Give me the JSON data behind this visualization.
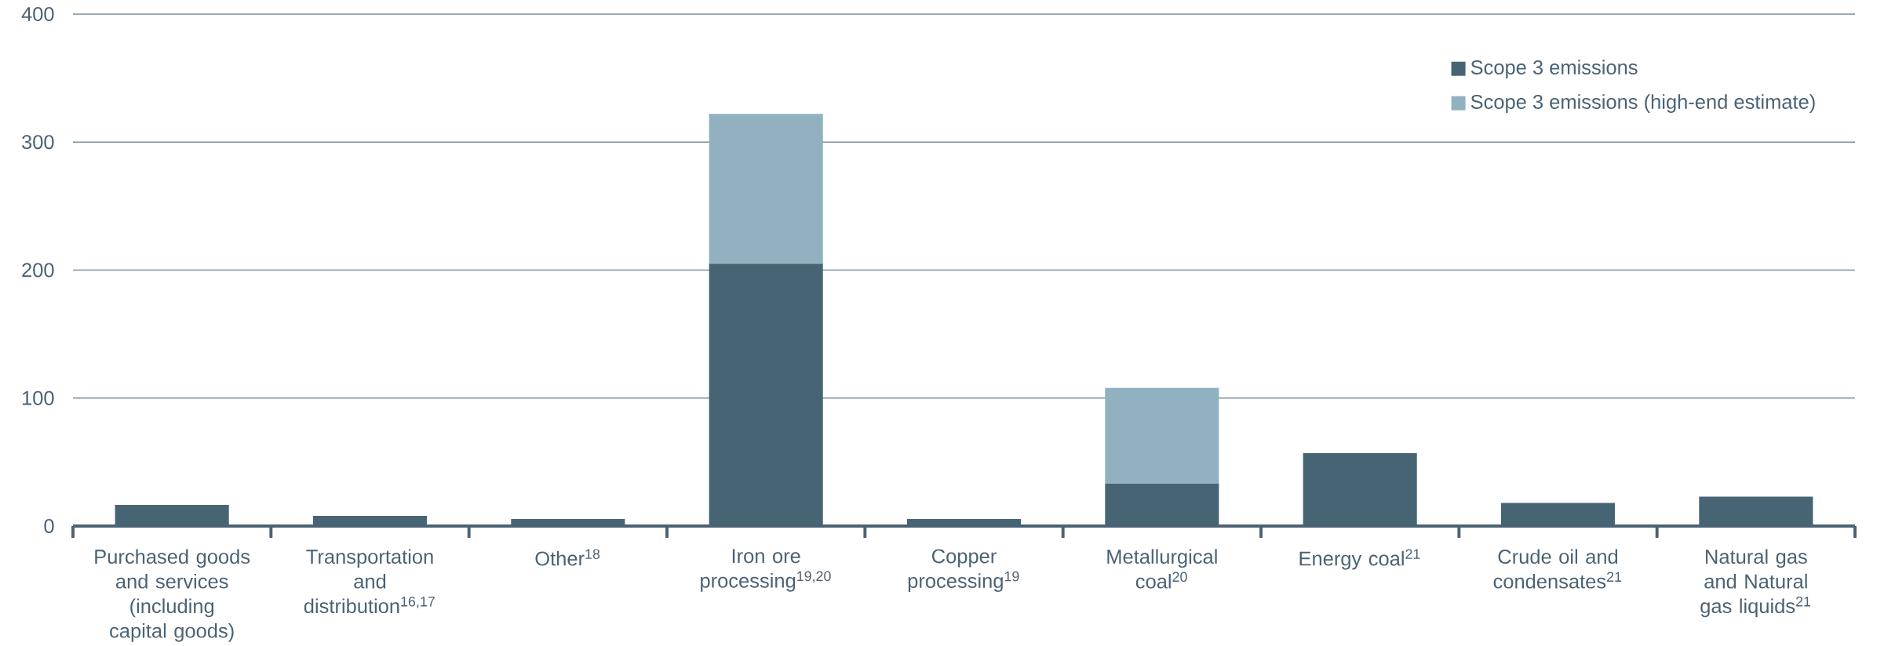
{
  "chart_data": {
    "type": "bar",
    "stacked": true,
    "categories": [
      "Purchased goods and services (including capital goods)",
      "Transportation and distribution$^{16,17}$",
      "Other$^{18}$",
      "Iron ore processing$^{19,20}$",
      "Copper processing$^{19}$",
      "Metallurgical coal$^{20}$",
      "Energy coal$^{21}$",
      "Crude oil and condensates$^{21}$",
      "Natural gas and Natural gas liquids$^{21}$"
    ],
    "series": [
      {
        "name": "Scope 3 emissions",
        "color": "#476474",
        "values": [
          16.5,
          8,
          5.5,
          205,
          5.5,
          33,
          57,
          18,
          23
        ]
      },
      {
        "name": "Scope 3 emissions (high-end estimate)",
        "color": "#91b1c1",
        "values": [
          null,
          null,
          null,
          117,
          null,
          75,
          null,
          null,
          null
        ]
      }
    ],
    "ylim": [
      0,
      400
    ],
    "yticks": [
      0,
      100,
      200,
      300,
      400
    ],
    "grid": "y",
    "legend": "top right"
  }
}
